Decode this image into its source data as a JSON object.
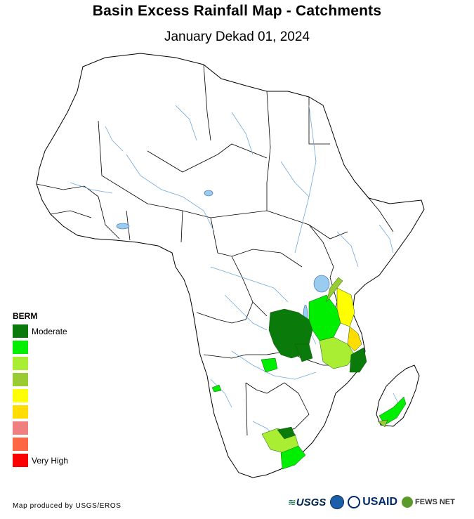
{
  "title": "Basin Excess Rainfall Map - Catchments",
  "subtitle": "January Dekad 01, 2024",
  "legend": {
    "title": "BERM",
    "items": [
      {
        "color": "#0a7a0a",
        "label": "Moderate"
      },
      {
        "color": "#00ee00",
        "label": ""
      },
      {
        "color": "#aaee33",
        "label": ""
      },
      {
        "color": "#99cc33",
        "label": ""
      },
      {
        "color": "#ffff00",
        "label": ""
      },
      {
        "color": "#ffdd00",
        "label": ""
      },
      {
        "color": "#f08080",
        "label": ""
      },
      {
        "color": "#ff6644",
        "label": ""
      },
      {
        "color": "#ff0000",
        "label": "Very High"
      }
    ]
  },
  "credit": "Map produced by USGS/EROS",
  "logos": {
    "usgs": "USGS",
    "usaid": "USAID",
    "fews": "FEWS NET"
  },
  "colors": {
    "land": "#ffffff",
    "border": "#000000",
    "river": "#6fa8dc",
    "lake": "#99ccee"
  }
}
